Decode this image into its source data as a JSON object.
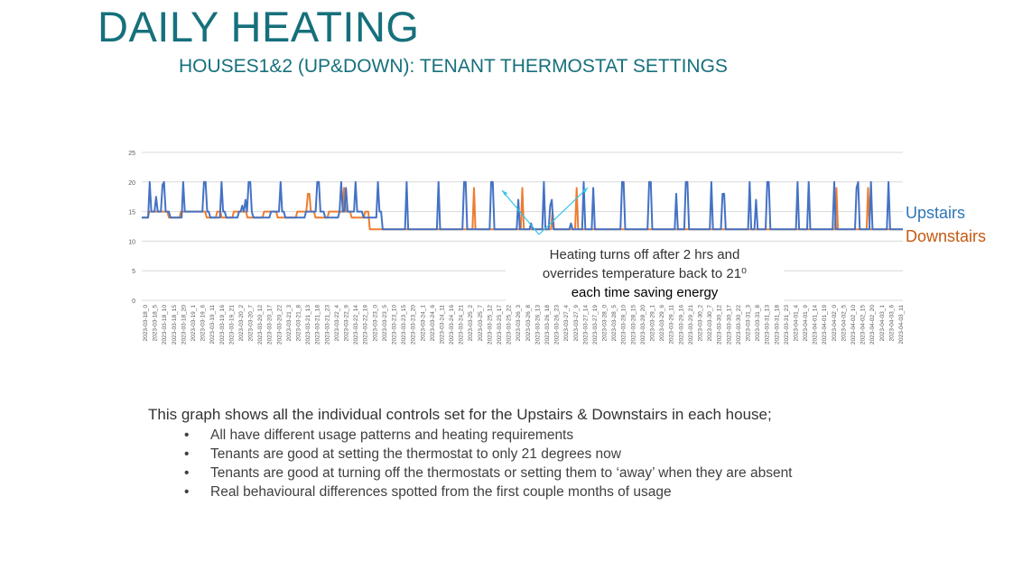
{
  "page": {
    "title": "DAILY HEATING",
    "subtitle": "HOUSES1&2 (UP&DOWN): TENANT THERMOSTAT SETTINGS",
    "annotation": {
      "line1": "Heating turns off after 2 hrs and",
      "line2": "overrides temperature back to 21⁰",
      "line3": "each time saving energy"
    },
    "summary": "This graph shows all the individual controls set for the Upstairs & Downstairs in each house;",
    "bullets": [
      "All have different usage patterns and heating requirements",
      "Tenants are good at setting the thermostat to only 21 degrees now",
      "Tenants are good at turning off the thermostats or setting them to ‘away’ when they are absent",
      "Real behavioural differences spotted from the first couple months of usage"
    ]
  },
  "chart_data": {
    "type": "line",
    "title": "",
    "xlabel": "",
    "ylabel": "",
    "ylim": [
      0,
      25
    ],
    "yticks": [
      0,
      5,
      10,
      15,
      20,
      25
    ],
    "grid": true,
    "legend_position": "right",
    "x_ticks": [
      "2023-03-18_0",
      "2023-03-18_5",
      "2023-03-18_10",
      "2023-03-18_15",
      "2023-03-18_20",
      "2023-03-19_1",
      "2023-03-19_6",
      "2023-03-19_11",
      "2023-03-19_16",
      "2023-03-19_21",
      "2023-03-20_2",
      "2023-03-20_7",
      "2023-03-20_12",
      "2023-03-20_17",
      "2023-03-20_22",
      "2023-03-21_3",
      "2023-03-21_8",
      "2023-03-21_13",
      "2023-03-21_18",
      "2023-03-21_23",
      "2023-03-22_4",
      "2023-03-22_9",
      "2023-03-22_14",
      "2023-03-22_19",
      "2023-03-23_0",
      "2023-03-23_5",
      "2023-03-23_10",
      "2023-03-23_15",
      "2023-03-23_20",
      "2023-03-24_1",
      "2023-03-24_6",
      "2023-03-24_11",
      "2023-03-24_16",
      "2023-03-24_21",
      "2023-03-25_2",
      "2023-03-25_7",
      "2023-03-25_12",
      "2023-03-25_17",
      "2023-03-25_22",
      "2023-03-26_3",
      "2023-03-26_8",
      "2023-03-26_13",
      "2023-03-26_18",
      "2023-03-26_23",
      "2023-03-27_4",
      "2023-03-27_9",
      "2023-03-27_14",
      "2023-03-27_19",
      "2023-03-28_0",
      "2023-03-28_5",
      "2023-03-28_10",
      "2023-03-28_15",
      "2023-03-28_20",
      "2023-03-29_1",
      "2023-03-29_6",
      "2023-03-29_11",
      "2023-03-29_16",
      "2023-03-29_21",
      "2023-03-30_2",
      "2023-03-30_7",
      "2023-03-30_12",
      "2023-03-30_17",
      "2023-03-30_22",
      "2023-03-31_3",
      "2023-03-31_8",
      "2023-03-31_13",
      "2023-03-31_18",
      "2023-03-31_23",
      "2023-04-01_4",
      "2023-04-01_9",
      "2023-04-01_14",
      "2023-04-01_19",
      "2023-04-02_0",
      "2023-04-02_5",
      "2023-04-02_10",
      "2023-04-02_15",
      "2023-04-02_20",
      "2023-04-03_1",
      "2023-04-03_6",
      "2023-04-03_11"
    ],
    "x_hours_per_tick": 5,
    "series": [
      {
        "name": "Upstairs",
        "color": "#4472c4",
        "values": [
          14,
          14,
          14,
          14,
          14,
          20,
          15,
          15,
          15,
          17.5,
          15,
          15,
          15,
          19.5,
          20,
          15,
          15,
          15,
          14,
          14,
          14,
          14,
          14,
          14,
          14,
          14,
          20,
          15,
          15,
          15,
          15,
          15,
          15,
          15,
          15,
          15,
          15,
          15,
          15,
          20,
          20,
          15,
          15,
          14,
          14,
          14,
          14,
          14,
          14,
          14,
          20,
          15,
          15,
          14,
          14,
          14,
          14,
          14,
          14,
          14,
          14,
          15,
          15,
          16,
          15,
          17,
          15,
          20,
          20,
          15,
          14,
          14,
          14,
          14,
          14,
          14,
          14,
          14,
          14,
          14,
          14,
          15,
          15,
          15,
          15,
          15,
          15,
          20,
          15,
          15,
          14,
          14,
          14,
          14,
          14,
          14,
          14,
          14,
          14,
          14,
          14,
          14,
          14,
          15,
          15,
          15,
          15,
          15,
          15,
          15,
          20,
          20,
          15,
          15,
          15,
          14,
          14,
          14,
          14,
          14,
          14,
          14,
          14,
          14,
          15,
          20,
          15,
          15,
          19,
          15,
          15,
          15,
          15,
          15,
          20,
          15,
          15,
          15,
          15,
          14,
          14,
          14,
          14,
          14,
          14,
          14,
          14,
          14,
          20,
          15,
          15,
          12,
          12,
          12,
          12,
          12,
          12,
          12,
          12,
          12,
          12,
          12,
          12,
          12,
          12,
          12,
          20,
          12,
          12,
          12,
          12,
          12,
          12,
          12,
          12,
          12,
          12,
          12,
          12,
          12,
          12,
          12,
          12,
          12,
          12,
          12,
          20,
          12,
          12,
          12,
          12,
          12,
          12,
          12,
          12,
          12,
          12,
          12,
          12,
          12,
          12,
          12,
          20,
          20,
          12,
          12,
          12,
          12,
          12,
          12,
          12,
          12,
          12,
          12,
          12,
          12,
          12,
          12,
          12,
          20,
          20,
          12,
          12,
          12,
          12,
          12,
          12,
          12,
          12,
          12,
          12,
          12,
          12,
          12,
          12,
          12,
          17,
          12,
          12,
          12,
          12,
          12,
          12,
          12,
          13,
          12,
          12,
          12,
          12,
          12,
          12,
          12,
          20,
          12,
          12,
          12,
          16,
          17,
          12,
          12,
          12,
          12,
          12,
          12,
          12,
          12,
          12,
          12,
          12,
          13,
          12,
          12,
          12,
          12,
          12,
          12,
          12,
          20,
          12,
          12,
          12,
          12,
          12,
          19,
          12,
          12,
          12,
          12,
          12,
          12,
          12,
          12,
          12,
          12,
          12,
          12,
          12,
          12,
          12,
          12,
          12,
          20,
          20,
          12,
          12,
          12,
          12,
          12,
          12,
          12,
          12,
          12,
          12,
          12,
          12,
          12,
          12,
          12,
          20,
          20,
          12,
          12,
          12,
          12,
          12,
          12,
          12,
          12,
          12,
          12,
          12,
          12,
          12,
          12,
          12,
          18,
          12,
          12,
          12,
          12,
          12,
          20,
          20,
          12,
          12,
          12,
          12,
          12,
          12,
          12,
          12,
          12,
          12,
          12,
          12,
          12,
          12,
          20,
          12,
          12,
          12,
          12,
          12,
          12,
          18,
          18,
          12,
          12,
          12,
          12,
          12,
          12,
          12,
          12,
          12,
          12,
          12,
          12,
          12,
          12,
          12,
          20,
          12,
          12,
          12,
          17,
          12,
          12,
          12,
          12,
          12,
          12,
          20,
          20,
          12,
          12,
          12,
          12,
          12,
          12,
          12,
          12,
          12,
          12,
          12,
          12,
          12,
          12,
          12,
          12,
          12,
          20,
          12,
          12,
          12,
          12,
          12,
          12,
          20,
          12,
          12,
          12,
          12,
          12,
          12,
          12,
          12,
          12,
          12,
          12,
          12,
          12,
          12,
          12,
          20,
          12,
          12,
          12,
          12,
          12,
          12,
          12,
          12,
          12,
          12,
          12,
          12,
          12,
          19,
          20,
          12,
          12,
          12,
          12,
          12,
          12,
          12,
          20,
          12,
          12,
          12,
          12,
          12,
          12,
          12,
          12,
          12,
          12,
          20,
          12,
          12,
          12,
          12,
          12,
          12,
          12,
          12,
          12
        ]
      },
      {
        "name": "Downstairs",
        "color": "#ed7d31",
        "values": [
          14,
          14,
          14,
          14,
          14,
          15,
          15,
          15,
          15,
          15,
          15,
          15,
          15,
          15,
          15,
          15,
          15,
          15,
          14,
          14,
          14,
          14,
          14,
          14,
          14,
          14,
          15,
          15,
          15,
          15,
          15,
          15,
          15,
          15,
          15,
          15,
          15,
          15,
          15,
          15,
          15,
          15,
          15,
          14,
          14,
          14,
          14,
          14,
          14,
          14,
          15,
          15,
          15,
          14,
          14,
          14,
          14,
          14,
          14,
          14,
          14,
          15,
          15,
          15,
          15,
          15,
          15,
          15,
          15,
          15,
          14,
          14,
          14,
          14,
          14,
          14,
          14,
          14,
          14,
          14,
          14,
          15,
          15,
          15,
          15,
          15,
          15,
          15,
          15,
          15,
          14,
          14,
          14,
          14,
          14,
          14,
          14,
          14,
          14,
          14,
          14,
          14,
          14,
          15,
          15,
          15,
          15,
          15,
          15,
          15,
          18,
          18,
          15,
          15,
          15,
          14,
          14,
          14,
          14,
          14,
          14,
          14,
          14,
          14,
          15,
          15,
          15,
          15,
          15,
          15,
          15,
          15,
          15,
          15,
          19,
          15,
          15,
          15,
          15,
          14,
          14,
          14,
          14,
          14,
          14,
          14,
          14,
          14,
          15,
          15,
          15,
          12,
          12,
          12,
          12,
          12,
          12,
          12,
          12,
          12,
          12,
          12,
          12,
          12,
          12,
          12,
          12,
          12,
          12,
          12,
          12,
          12,
          12,
          12,
          12,
          12,
          12,
          12,
          12,
          12,
          12,
          12,
          12,
          12,
          12,
          12,
          12,
          12,
          12,
          12,
          12,
          12,
          12,
          12,
          12,
          12,
          12,
          12,
          12,
          12,
          12,
          12,
          12,
          12,
          12,
          12,
          12,
          12,
          12,
          12,
          12,
          12,
          12,
          12,
          12,
          12,
          12,
          12,
          12,
          12,
          19,
          12,
          12,
          12,
          12,
          12,
          12,
          12,
          12,
          12,
          12,
          12,
          12,
          12,
          12,
          12,
          12,
          12,
          12,
          12,
          12,
          12,
          12,
          12,
          12,
          12,
          12,
          12,
          12,
          12,
          12,
          12,
          19,
          12,
          12,
          12,
          12,
          12,
          12,
          12,
          12,
          12,
          12,
          12,
          12,
          12,
          12,
          12,
          12,
          12,
          12,
          12,
          15,
          12,
          12,
          12,
          12,
          12,
          12,
          12,
          12,
          12,
          12,
          12,
          12,
          12,
          12,
          12,
          19,
          12,
          12,
          12,
          12,
          12,
          12,
          12,
          12,
          12,
          12,
          12,
          12,
          12,
          12,
          12,
          12,
          12,
          12,
          12,
          12,
          12,
          12,
          12,
          12,
          12,
          12,
          12,
          12,
          12,
          12,
          12,
          12,
          12,
          12,
          12,
          12,
          12,
          12,
          12,
          12,
          12,
          12,
          12,
          12,
          12,
          12,
          12,
          12,
          12,
          12,
          12,
          12,
          12,
          12,
          12,
          12,
          12,
          12,
          12,
          12,
          12,
          12,
          12,
          12,
          12,
          12,
          12,
          12,
          12,
          12,
          12,
          12,
          12,
          12,
          12,
          12,
          12,
          12,
          12,
          12,
          12,
          12,
          12,
          12,
          12,
          12,
          12,
          12,
          12,
          12,
          12,
          12,
          12,
          12,
          12,
          12,
          12,
          12,
          12,
          12,
          12,
          12,
          12,
          12,
          12,
          12,
          12,
          12,
          12,
          12,
          12,
          12,
          12,
          12,
          12,
          12,
          12,
          12,
          12,
          12,
          12,
          12,
          12,
          12,
          12,
          12,
          12,
          12,
          12,
          12,
          12,
          12,
          12,
          12,
          12,
          12,
          12,
          12,
          12,
          12,
          12,
          12,
          12,
          12,
          12,
          12,
          12,
          12,
          12,
          12,
          12,
          12,
          12,
          12,
          12,
          12,
          12,
          12,
          12,
          12,
          12,
          12,
          12,
          12,
          12,
          12,
          12,
          12,
          12,
          12,
          12,
          19,
          12,
          12,
          12,
          12,
          12,
          12,
          12,
          12,
          12,
          12,
          12,
          12,
          12,
          12,
          12,
          12,
          12,
          12,
          12,
          12,
          19,
          12,
          12,
          12,
          12,
          12,
          12,
          12,
          12,
          12,
          12,
          12,
          12,
          12,
          12,
          12,
          12,
          12,
          12,
          12,
          12,
          12,
          12,
          12
        ]
      }
    ]
  }
}
